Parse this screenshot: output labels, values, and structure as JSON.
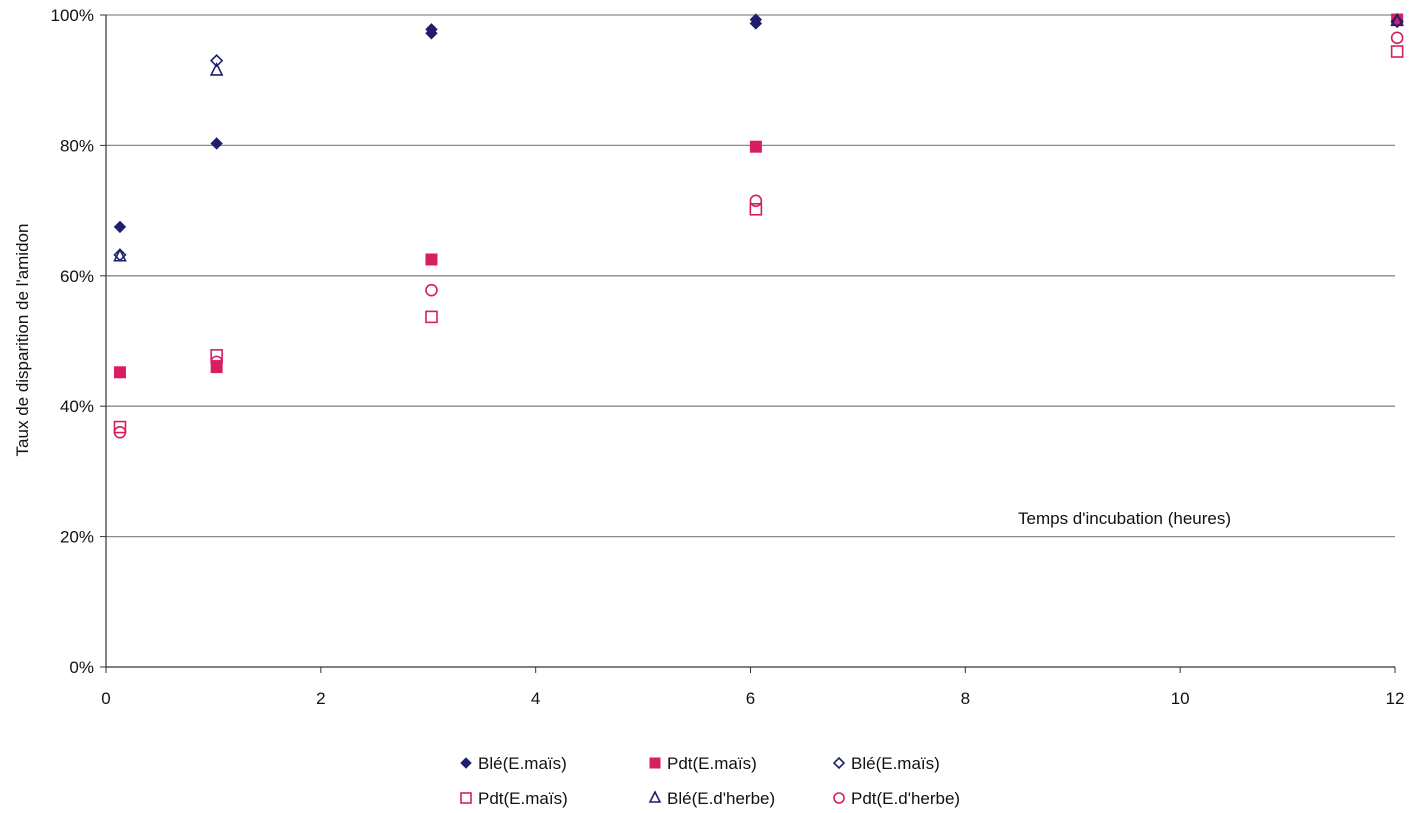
{
  "chart_data": {
    "type": "scatter",
    "title": "",
    "xlabel": "Temps d'incubation (heures)",
    "ylabel": "Taux de disparition de l'amidon",
    "xlim": [
      0,
      12
    ],
    "ylim": [
      0,
      100
    ],
    "x_ticks": [
      "0",
      "2",
      "4",
      "6",
      "8",
      "10",
      "12"
    ],
    "y_ticks": [
      "0%",
      "20%",
      "40%",
      "60%",
      "80%",
      "100%"
    ],
    "grid": "horizontal",
    "legend_position": "bottom",
    "series": [
      {
        "name": "Blé(E.maïs)",
        "marker": "diamond-filled",
        "color": "#1f1f6e",
        "points": [
          [
            0.13,
            67.5
          ],
          [
            1.03,
            80.3
          ],
          [
            3.03,
            97.2
          ],
          [
            3.03,
            97.8
          ],
          [
            6.05,
            98.7
          ],
          [
            6.05,
            99.3
          ],
          [
            12.02,
            99.2
          ]
        ]
      },
      {
        "name": "Pdt(E.maïs)",
        "marker": "square-filled",
        "color": "#d81e63",
        "points": [
          [
            0.13,
            45.2
          ],
          [
            1.03,
            46.0
          ],
          [
            3.03,
            62.5
          ],
          [
            6.05,
            79.8
          ],
          [
            12.02,
            99.3
          ]
        ]
      },
      {
        "name": "Blé(E.maïs)",
        "marker": "diamond-open",
        "color": "#1f1f6e",
        "points": [
          [
            0.13,
            63.2
          ],
          [
            1.03,
            93.0
          ],
          [
            12.02,
            99.0
          ]
        ]
      },
      {
        "name": "Pdt(E.maïs)",
        "marker": "square-open",
        "color": "#d81e63",
        "points": [
          [
            0.13,
            36.8
          ],
          [
            1.03,
            47.8
          ],
          [
            3.03,
            53.7
          ],
          [
            6.05,
            70.2
          ],
          [
            12.02,
            94.4
          ]
        ]
      },
      {
        "name": "Blé(E.d'herbe)",
        "marker": "triangle-open",
        "color": "#1f1f6e",
        "points": [
          [
            0.13,
            63.0
          ],
          [
            1.03,
            91.5
          ],
          [
            12.02,
            99.1
          ]
        ]
      },
      {
        "name": "Pdt(E.d'herbe)",
        "marker": "circle-open",
        "color": "#d81e63",
        "points": [
          [
            0.13,
            36.0
          ],
          [
            1.03,
            46.8
          ],
          [
            3.03,
            57.8
          ],
          [
            6.05,
            71.5
          ],
          [
            12.02,
            96.5
          ]
        ]
      }
    ]
  }
}
